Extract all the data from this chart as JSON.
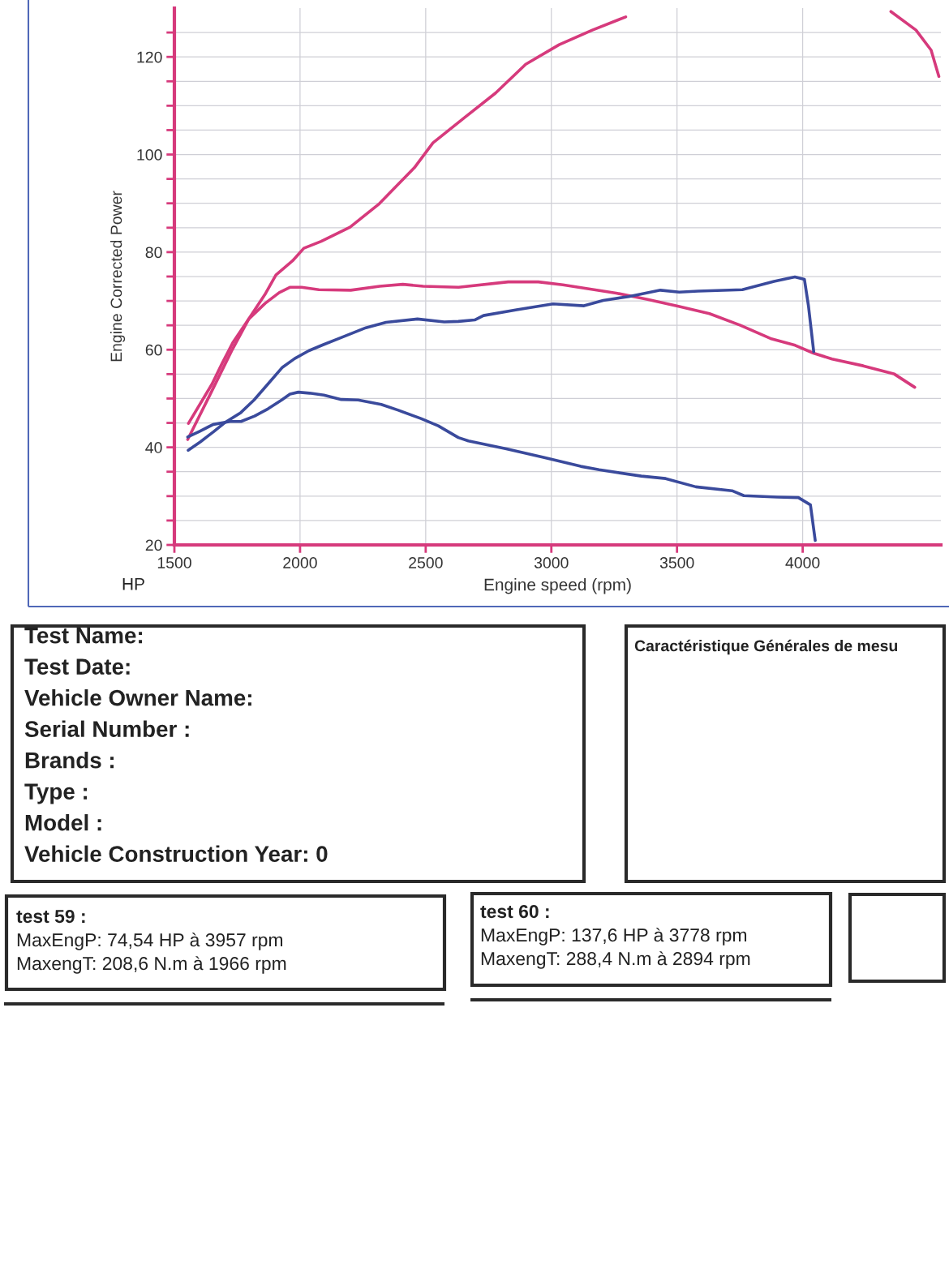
{
  "chart_data": {
    "type": "line",
    "xlabel": "Engine speed (rpm)",
    "ylabel": "Engine Corrected Power",
    "annotations": [
      "HP",
      "Test Name:",
      "Test Date:",
      "Vehicle Owner Name:",
      "Serial Number :",
      "Brands :",
      "Type :",
      "Model :",
      "Vehicle Construction Year: 0",
      "Caractéristique Générales de mesu",
      "test 59 :",
      "MaxEngP: 74,54 HP à 3957 rpm",
      "MaxengT: 208,6 N.m à 1966 rpm",
      "test 60 :",
      "MaxEngP: 137,6 HP à 3778 rpm",
      "MaxengT: 288,4 N.m à 2894 rpm"
    ],
    "series": [
      {
        "color": "#d63a7c",
        "x": [
          1553,
          1640,
          1727,
          1796,
          1860,
          1904,
          1970,
          2015,
          2084,
          2199,
          2315,
          2455,
          2529,
          2653,
          2778,
          2898,
          3031,
          3163,
          3296,
          3700,
          4351,
          4451,
          4511,
          4542
        ],
        "values": [
          41.6,
          50.6,
          59.7,
          66.3,
          71.3,
          75.3,
          78.2,
          80.8,
          82.2,
          85.1,
          89.9,
          97.3,
          102.4,
          107.5,
          112.6,
          118.5,
          122.5,
          125.5,
          128.2,
          null,
          129.3,
          125.5,
          121.4,
          116.0
        ]
      },
      {
        "color": "#d63a7c",
        "x": [
          1556,
          1649,
          1690,
          1732,
          1796,
          1861,
          1917,
          1961,
          2006,
          2075,
          2202,
          2317,
          2409,
          2490,
          2631,
          2828,
          2948,
          3046,
          3134,
          3258,
          3383,
          3506,
          3629,
          3752,
          3872,
          3970,
          4043,
          4117,
          4241,
          4365,
          4446
        ],
        "values": [
          44.9,
          52.9,
          57.2,
          61.4,
          66.3,
          69.5,
          71.7,
          72.8,
          72.8,
          72.3,
          72.2,
          73.0,
          73.4,
          73.0,
          72.8,
          73.9,
          73.9,
          73.3,
          72.6,
          71.6,
          70.3,
          68.9,
          67.4,
          65.0,
          62.3,
          60.9,
          59.3,
          58.1,
          56.7,
          55.0,
          52.3
        ]
      },
      {
        "color": "#3a4a9c",
        "x": [
          1555,
          1603,
          1656,
          1699,
          1764,
          1817,
          1871,
          1930,
          1979,
          2035,
          2091,
          2159,
          2262,
          2342,
          2467,
          2574,
          2630,
          2695,
          2730,
          2862,
          3007,
          3130,
          3206,
          3308,
          3434,
          3509,
          3584,
          3760,
          3886,
          3969,
          4007,
          4023,
          4044
        ],
        "values": [
          39.4,
          41.1,
          43.2,
          45.0,
          47.1,
          49.7,
          52.9,
          56.4,
          58.2,
          59.8,
          61.0,
          62.4,
          64.5,
          65.6,
          66.3,
          65.7,
          65.8,
          66.1,
          67.0,
          68.2,
          69.4,
          69.0,
          70.1,
          70.9,
          72.2,
          71.8,
          72.0,
          72.3,
          74.0,
          74.9,
          74.4,
          69.0,
          59.6
        ]
      },
      {
        "color": "#3a4a9c",
        "x": [
          1553,
          1601,
          1655,
          1721,
          1765,
          1819,
          1873,
          1927,
          1960,
          1993,
          2038,
          2095,
          2164,
          2231,
          2323,
          2391,
          2481,
          2550,
          2630,
          2670,
          2821,
          2972,
          3117,
          3190,
          3358,
          3455,
          3575,
          3719,
          3766,
          3899,
          3983,
          4031,
          4050
        ],
        "values": [
          42.1,
          43.3,
          44.7,
          45.3,
          45.3,
          46.4,
          47.9,
          49.7,
          50.9,
          51.3,
          51.1,
          50.7,
          49.8,
          49.7,
          48.8,
          47.6,
          45.9,
          44.4,
          42.0,
          41.3,
          39.7,
          37.9,
          36.1,
          35.4,
          34.1,
          33.6,
          31.9,
          31.1,
          30.1,
          29.8,
          29.7,
          28.2,
          20.9
        ]
      }
    ],
    "xlim": [
      1500,
      4550
    ],
    "ylim": [
      20,
      130
    ],
    "xticks": [
      1500,
      2000,
      2500,
      3000,
      3500,
      4000
    ],
    "yticks": [
      20,
      {
        "value": 25,
        "label": null
      },
      {
        "value": 30,
        "label": null
      },
      {
        "value": 35,
        "label": null
      },
      40,
      {
        "value": 45,
        "label": null
      },
      {
        "value": 50,
        "label": null
      },
      {
        "value": 55,
        "label": null
      },
      60,
      {
        "value": 65,
        "label": null
      },
      {
        "value": 70,
        "label": null
      },
      {
        "value": 75,
        "label": null
      },
      80,
      {
        "value": 85,
        "label": null
      },
      {
        "value": 90,
        "label": null
      },
      {
        "value": 95,
        "label": null
      },
      100,
      {
        "value": 105,
        "label": null
      },
      {
        "value": 110,
        "label": null
      },
      {
        "value": 115,
        "label": null
      },
      120,
      {
        "value": 125,
        "label": null
      }
    ],
    "grid": true,
    "line_style": "solid"
  }
}
